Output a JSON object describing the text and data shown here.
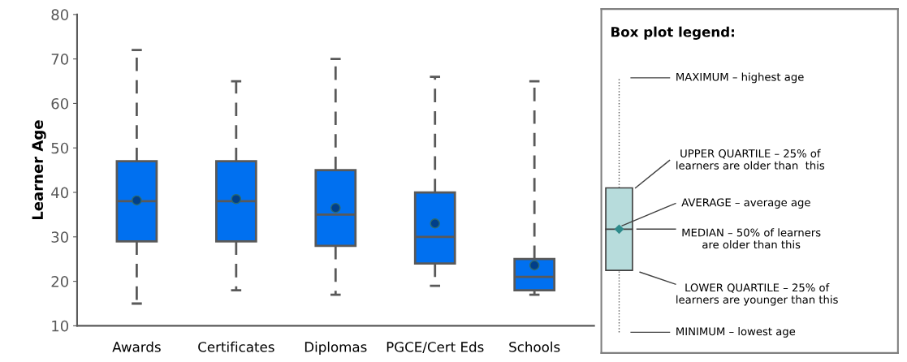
{
  "chart_data": [
    {
      "type": "box",
      "ylabel": "Learner Age",
      "categories": [
        "Awards",
        "Certificates",
        "Diplomas",
        "PGCE/Cert Eds",
        "Schools"
      ],
      "color": "#0070f0",
      "ylim": [
        10,
        80
      ],
      "yticks": [
        10,
        20,
        30,
        40,
        50,
        60,
        70,
        80
      ],
      "grid": false,
      "legend": false,
      "line_style": "dashed",
      "boxes": [
        {
          "low": 15,
          "q1": 29,
          "median": 38,
          "q3": 47,
          "high": 72,
          "mean": 38.2
        },
        {
          "low": 18,
          "q1": 29,
          "median": 38,
          "q3": 47,
          "high": 65,
          "mean": 38.5
        },
        {
          "low": 17,
          "q1": 28,
          "median": 35,
          "q3": 45,
          "high": 70,
          "mean": 36.5
        },
        {
          "low": 19,
          "q1": 24,
          "median": 30,
          "q3": 40,
          "high": 66,
          "mean": 33
        },
        {
          "low": 17,
          "q1": 18,
          "median": 21,
          "q3": 25,
          "high": 65,
          "mean": 23.6
        }
      ]
    },
    {
      "type": "other",
      "title": "Box plot legend:",
      "annotations": [
        "MAXIMUM – highest age",
        "UPPER QUARTILE – 25% of\nlearners are older than  this",
        "AVERAGE – average age",
        "MEDIAN – 50% of learners\nare older than this",
        "LOWER QUARTILE – 25% of\nlearners are younger than this",
        "MINIMUM – lowest age"
      ]
    }
  ]
}
